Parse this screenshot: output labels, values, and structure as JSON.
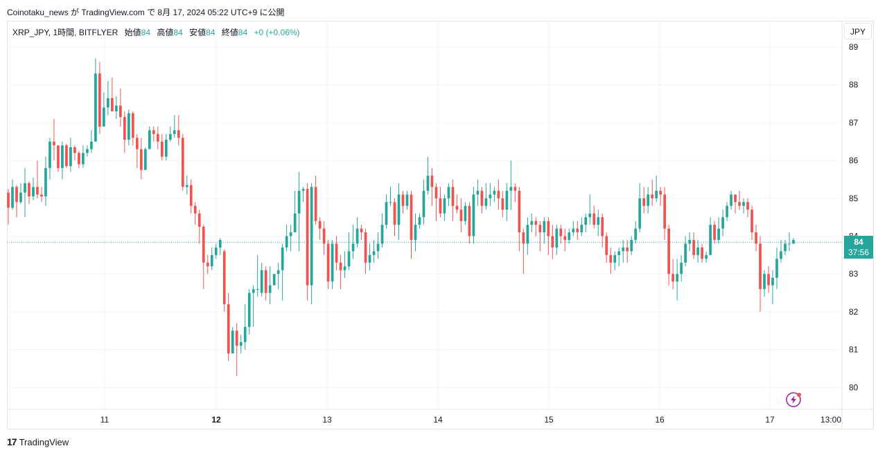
{
  "header": {
    "published_text": "Coinotaku_news が TradingView.com で 8月 17, 2024 05:22 UTC+9 に公開"
  },
  "legend": {
    "symbol": "XRP_JPY, 1時間, BITFLYER",
    "open_label": "始値",
    "open_value": "84",
    "high_label": "高値",
    "high_value": "84",
    "low_label": "安値",
    "low_value": "84",
    "close_label": "終値",
    "close_value": "84",
    "change": "+0 (+0.06%)"
  },
  "currency_button": "JPY",
  "price_badge": {
    "price": "84",
    "countdown": "37:56"
  },
  "footer": {
    "logo_mark": "17",
    "brand": "TradingView"
  },
  "colors": {
    "up": "#26a69a",
    "down": "#ef5350",
    "grid": "#f0f3fa",
    "text": "#131722"
  },
  "icons": {
    "footer_logo": "tradingview-logo-icon",
    "replay": "lightning-replay-icon"
  },
  "chart_data": {
    "type": "candlestick",
    "y_axis": {
      "ticks": [
        "80",
        "81",
        "82",
        "83",
        "84",
        "85",
        "86",
        "87",
        "88",
        "89"
      ],
      "range": [
        79.5,
        89.2
      ],
      "position": "right"
    },
    "x_axis": {
      "ticks": [
        "11",
        "12",
        "13",
        "14",
        "15",
        "16",
        "17",
        "13:00"
      ],
      "bold_ticks": [
        "12"
      ]
    },
    "last_price": 83.84,
    "candles": [
      [
        85.15,
        84.75,
        85.25,
        84.3
      ],
      [
        84.75,
        85.3,
        85.5,
        84.7
      ],
      [
        85.3,
        84.9,
        85.35,
        84.5
      ],
      [
        84.9,
        85.15,
        85.4,
        84.85
      ],
      [
        85.15,
        85.4,
        85.8,
        84.5
      ],
      [
        85.4,
        85.05,
        85.45,
        84.85
      ],
      [
        85.05,
        85.3,
        85.55,
        84.95
      ],
      [
        85.3,
        85.1,
        86.0,
        85.0
      ],
      [
        85.1,
        85.05,
        85.3,
        84.9
      ],
      [
        85.05,
        85.8,
        86.1,
        84.8
      ],
      [
        85.8,
        86.5,
        86.6,
        85.5
      ],
      [
        86.5,
        86.4,
        87.1,
        86.0
      ],
      [
        86.4,
        85.8,
        86.3,
        85.7
      ],
      [
        85.8,
        86.4,
        86.5,
        85.5
      ],
      [
        86.4,
        85.85,
        86.45,
        85.8
      ],
      [
        85.85,
        86.35,
        86.6,
        85.7
      ],
      [
        86.35,
        86.2,
        86.4,
        86.0
      ],
      [
        86.2,
        85.9,
        86.25,
        85.8
      ],
      [
        85.9,
        86.2,
        86.4,
        85.8
      ],
      [
        86.2,
        86.3,
        86.4,
        86.1
      ],
      [
        86.3,
        86.5,
        86.8,
        86.2
      ],
      [
        86.5,
        88.3,
        88.7,
        86.5
      ],
      [
        88.3,
        86.9,
        88.6,
        86.7
      ],
      [
        86.9,
        87.4,
        87.8,
        86.9
      ],
      [
        87.4,
        87.65,
        88.1,
        87.2
      ],
      [
        87.65,
        87.3,
        88.2,
        87.3
      ],
      [
        87.3,
        87.45,
        87.7,
        87.1
      ],
      [
        87.45,
        87.15,
        87.9,
        86.9
      ],
      [
        87.15,
        86.55,
        87.3,
        86.2
      ],
      [
        86.55,
        87.25,
        87.35,
        86.4
      ],
      [
        87.25,
        86.6,
        87.3,
        86.4
      ],
      [
        86.6,
        86.3,
        86.7,
        85.8
      ],
      [
        86.3,
        85.75,
        86.6,
        85.5
      ],
      [
        85.75,
        86.3,
        86.35,
        85.9
      ],
      [
        86.3,
        86.8,
        86.9,
        86.5
      ],
      [
        86.8,
        86.7,
        86.9,
        86.5
      ],
      [
        86.7,
        86.5,
        86.9,
        86.3
      ],
      [
        86.5,
        86.1,
        86.7,
        86.0
      ],
      [
        86.1,
        86.55,
        86.7,
        86.0
      ],
      [
        86.55,
        86.7,
        86.9,
        86.5
      ],
      [
        86.7,
        86.8,
        87.2,
        86.6
      ],
      [
        86.8,
        86.6,
        87.2,
        86.4
      ],
      [
        86.6,
        85.3,
        86.7,
        85.2
      ],
      [
        85.3,
        85.35,
        85.6,
        85.1
      ],
      [
        85.35,
        84.8,
        85.5,
        84.6
      ],
      [
        84.8,
        84.6,
        84.9,
        84.3
      ],
      [
        84.6,
        84.25,
        84.7,
        83.8
      ],
      [
        84.25,
        83.3,
        84.3,
        82.6
      ],
      [
        83.3,
        83.2,
        83.5,
        83.0
      ],
      [
        83.2,
        83.5,
        83.7,
        83.1
      ],
      [
        83.5,
        83.7,
        83.8,
        83.4
      ],
      [
        83.7,
        83.9,
        83.95,
        83.5
      ],
      [
        83.6,
        82.2,
        83.65,
        82.0
      ],
      [
        82.2,
        80.9,
        82.5,
        80.7
      ],
      [
        80.9,
        81.5,
        81.6,
        80.9
      ],
      [
        81.5,
        81.1,
        81.7,
        80.3
      ],
      [
        81.1,
        81.2,
        81.4,
        80.9
      ],
      [
        81.2,
        81.6,
        82.2,
        81.0
      ],
      [
        81.6,
        82.5,
        82.6,
        81.4
      ],
      [
        82.5,
        82.6,
        82.7,
        81.6
      ],
      [
        82.6,
        82.6,
        83.5,
        82.4
      ],
      [
        82.5,
        83.1,
        83.3,
        82.4
      ],
      [
        83.1,
        82.5,
        83.2,
        82.3
      ],
      [
        82.5,
        82.7,
        83.2,
        82.2
      ],
      [
        82.7,
        83.0,
        83.0,
        82.7
      ],
      [
        83.0,
        83.1,
        83.3,
        82.6
      ],
      [
        83.1,
        83.7,
        83.8,
        82.3
      ],
      [
        83.7,
        84.0,
        84.3,
        83.6
      ],
      [
        84.0,
        84.1,
        84.3,
        83.6
      ],
      [
        84.1,
        84.6,
        85.2,
        84.1
      ],
      [
        84.6,
        85.2,
        85.7,
        83.6
      ],
      [
        85.2,
        85.25,
        85.3,
        84.9
      ],
      [
        85.25,
        82.7,
        85.4,
        82.3
      ],
      [
        82.7,
        85.3,
        85.4,
        82.2
      ],
      [
        85.3,
        84.4,
        85.6,
        84.3
      ],
      [
        84.4,
        84.2,
        84.5,
        83.9
      ],
      [
        84.2,
        83.8,
        84.4,
        83.5
      ],
      [
        83.8,
        82.8,
        83.9,
        82.6
      ],
      [
        82.8,
        83.8,
        83.9,
        82.6
      ],
      [
        83.8,
        83.3,
        84.0,
        83.1
      ],
      [
        83.3,
        83.1,
        83.5,
        82.6
      ],
      [
        83.1,
        83.2,
        83.6,
        82.9
      ],
      [
        83.2,
        83.6,
        84.1,
        83.1
      ],
      [
        83.6,
        83.8,
        84.3,
        83.4
      ],
      [
        83.8,
        84.2,
        84.5,
        83.7
      ],
      [
        84.2,
        84.1,
        84.3,
        83.9
      ],
      [
        84.1,
        83.3,
        84.2,
        83.0
      ],
      [
        83.3,
        83.5,
        83.8,
        83.1
      ],
      [
        83.5,
        83.6,
        83.9,
        83.3
      ],
      [
        83.6,
        83.8,
        84.1,
        83.4
      ],
      [
        83.8,
        84.3,
        84.6,
        83.7
      ],
      [
        84.3,
        84.9,
        85.1,
        84.2
      ],
      [
        84.9,
        84.9,
        85.3,
        84.8
      ],
      [
        84.9,
        84.3,
        85.0,
        84.0
      ],
      [
        84.3,
        85.1,
        85.4,
        83.9
      ],
      [
        85.1,
        84.8,
        85.2,
        84.6
      ],
      [
        84.8,
        85.1,
        85.2,
        84.7
      ],
      [
        85.1,
        83.9,
        85.2,
        83.4
      ],
      [
        83.9,
        84.3,
        84.6,
        83.6
      ],
      [
        84.3,
        84.5,
        84.6,
        84.2
      ],
      [
        84.5,
        85.2,
        85.5,
        84.3
      ],
      [
        85.2,
        85.6,
        86.1,
        85.1
      ],
      [
        85.6,
        85.3,
        85.8,
        84.8
      ],
      [
        85.3,
        85.0,
        85.4,
        84.4
      ],
      [
        85.0,
        84.6,
        85.3,
        84.5
      ],
      [
        84.6,
        85.0,
        85.1,
        84.4
      ],
      [
        85.0,
        85.3,
        85.4,
        84.8
      ],
      [
        85.3,
        84.8,
        85.5,
        84.4
      ],
      [
        84.8,
        84.7,
        85.1,
        84.6
      ],
      [
        84.7,
        84.4,
        85.0,
        84.1
      ],
      [
        84.4,
        84.8,
        84.9,
        84.3
      ],
      [
        84.8,
        84.0,
        84.9,
        83.8
      ],
      [
        84.0,
        85.1,
        85.3,
        83.8
      ],
      [
        85.1,
        85.2,
        85.5,
        84.8
      ],
      [
        85.2,
        84.8,
        85.3,
        84.6
      ],
      [
        84.8,
        85.0,
        85.4,
        84.7
      ],
      [
        85.0,
        85.1,
        85.4,
        84.8
      ],
      [
        85.1,
        85.2,
        85.3,
        84.9
      ],
      [
        85.2,
        85.0,
        85.5,
        84.7
      ],
      [
        85.0,
        84.7,
        85.2,
        84.5
      ],
      [
        84.7,
        85.2,
        85.4,
        84.4
      ],
      [
        85.2,
        85.3,
        86.0,
        84.7
      ],
      [
        85.3,
        85.2,
        85.4,
        84.9
      ],
      [
        85.2,
        84.1,
        85.3,
        83.6
      ],
      [
        84.1,
        83.8,
        84.2,
        83.0
      ],
      [
        83.8,
        84.3,
        84.5,
        83.5
      ],
      [
        84.3,
        84.4,
        84.6,
        84.1
      ],
      [
        84.4,
        84.3,
        84.5,
        84.0
      ],
      [
        84.3,
        84.1,
        84.4,
        83.6
      ],
      [
        84.1,
        84.4,
        84.5,
        83.8
      ],
      [
        84.4,
        84.0,
        84.5,
        83.5
      ],
      [
        84.0,
        83.7,
        84.3,
        83.4
      ],
      [
        83.7,
        84.2,
        84.3,
        83.5
      ],
      [
        84.2,
        84.0,
        84.3,
        83.8
      ],
      [
        84.0,
        83.9,
        84.2,
        83.6
      ],
      [
        83.9,
        84.1,
        84.2,
        83.8
      ],
      [
        84.1,
        84.2,
        84.4,
        84.0
      ],
      [
        84.2,
        84.1,
        84.4,
        83.9
      ],
      [
        84.1,
        84.3,
        84.5,
        84.0
      ],
      [
        84.3,
        84.5,
        84.6,
        84.1
      ],
      [
        84.5,
        84.6,
        85.1,
        84.3
      ],
      [
        84.6,
        84.3,
        84.8,
        84.2
      ],
      [
        84.3,
        84.5,
        84.7,
        84.0
      ],
      [
        84.5,
        84.0,
        84.6,
        83.7
      ],
      [
        84.0,
        83.5,
        84.1,
        83.3
      ],
      [
        83.5,
        83.3,
        83.7,
        83.0
      ],
      [
        83.3,
        83.5,
        83.6,
        83.1
      ],
      [
        83.5,
        83.6,
        83.7,
        83.2
      ],
      [
        83.6,
        83.7,
        83.9,
        83.3
      ],
      [
        83.7,
        83.6,
        83.9,
        83.3
      ],
      [
        83.6,
        83.9,
        84.0,
        83.5
      ],
      [
        83.9,
        84.2,
        84.4,
        83.8
      ],
      [
        84.2,
        85.0,
        85.4,
        84.1
      ],
      [
        85.0,
        84.8,
        85.3,
        84.6
      ],
      [
        84.8,
        85.1,
        85.3,
        84.6
      ],
      [
        85.1,
        85.0,
        85.5,
        84.8
      ],
      [
        85.0,
        85.2,
        85.6,
        84.9
      ],
      [
        85.2,
        85.1,
        85.3,
        84.8
      ],
      [
        85.1,
        84.2,
        85.3,
        83.9
      ],
      [
        84.2,
        83.0,
        84.3,
        82.7
      ],
      [
        83.0,
        82.8,
        83.4,
        82.6
      ],
      [
        82.8,
        83.0,
        83.4,
        82.3
      ],
      [
        83.0,
        83.3,
        83.5,
        82.8
      ],
      [
        83.3,
        83.8,
        84.0,
        83.2
      ],
      [
        83.8,
        83.9,
        84.1,
        83.6
      ],
      [
        83.9,
        83.5,
        84.1,
        83.4
      ],
      [
        83.5,
        83.7,
        83.9,
        83.3
      ],
      [
        83.7,
        83.4,
        83.8,
        83.3
      ],
      [
        83.4,
        83.5,
        83.6,
        83.3
      ],
      [
        83.5,
        84.3,
        84.5,
        83.5
      ],
      [
        84.3,
        83.9,
        84.4,
        83.8
      ],
      [
        83.9,
        84.2,
        84.5,
        83.8
      ],
      [
        84.2,
        84.5,
        84.7,
        84.0
      ],
      [
        84.5,
        84.8,
        84.9,
        84.4
      ],
      [
        84.8,
        85.1,
        85.2,
        84.7
      ],
      [
        85.1,
        84.9,
        85.1,
        84.6
      ],
      [
        84.9,
        84.8,
        85.2,
        84.7
      ],
      [
        84.8,
        84.9,
        85.0,
        84.6
      ],
      [
        84.9,
        84.7,
        85.0,
        84.5
      ],
      [
        84.7,
        84.1,
        84.8,
        83.9
      ],
      [
        84.1,
        83.8,
        84.3,
        83.6
      ],
      [
        83.8,
        82.6,
        84.0,
        82.0
      ],
      [
        82.6,
        83.0,
        83.1,
        82.4
      ],
      [
        83.0,
        82.7,
        83.2,
        82.5
      ],
      [
        82.7,
        82.9,
        83.1,
        82.2
      ],
      [
        82.9,
        83.4,
        83.7,
        82.6
      ],
      [
        83.4,
        83.6,
        83.9,
        83.3
      ],
      [
        83.6,
        83.8,
        83.9,
        83.5
      ],
      [
        83.8,
        83.8,
        84.1,
        83.6
      ],
      [
        83.8,
        83.9,
        83.95,
        83.8
      ]
    ]
  }
}
